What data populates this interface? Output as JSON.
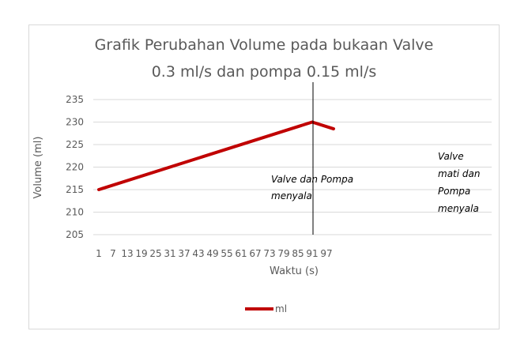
{
  "chart_data": {
    "type": "line",
    "title_lines": [
      "Grafik Perubahan Volume pada bukaan Valve",
      "0.3 ml/s dan pompa 0.15 ml/s"
    ],
    "xlabel": "Waktu (s)",
    "ylabel": "Volume (ml)",
    "ylim": [
      205,
      235
    ],
    "yticks": [
      205,
      210,
      215,
      220,
      225,
      230,
      235
    ],
    "xlim": [
      1,
      100
    ],
    "xticks": [
      1,
      7,
      13,
      19,
      25,
      31,
      37,
      43,
      49,
      55,
      61,
      67,
      73,
      79,
      85,
      91,
      97
    ],
    "grid": true,
    "legend_position": "bottom",
    "series": [
      {
        "name": "ml",
        "color": "#c00000",
        "points": [
          [
            1,
            215.0
          ],
          [
            91,
            230.0
          ],
          [
            100,
            228.5
          ]
        ]
      }
    ],
    "vertical_marker": {
      "x": 91
    },
    "annotations": [
      {
        "lines": [
          "Valve dan Pompa",
          "menyala"
        ]
      },
      {
        "lines": [
          "Valve",
          "mati dan",
          "Pompa",
          "menyala"
        ]
      }
    ]
  }
}
